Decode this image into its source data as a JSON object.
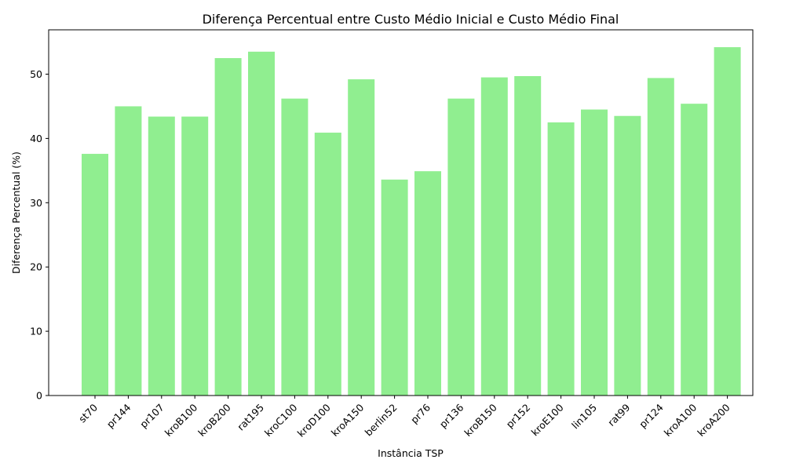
{
  "chart_data": {
    "type": "bar",
    "title": "Diferença Percentual entre Custo Médio Inicial e Custo Médio Final",
    "xlabel": "Instância TSP",
    "ylabel": "Diferença Percentual (%)",
    "categories": [
      "st70",
      "pr144",
      "pr107",
      "kroB100",
      "kroB200",
      "rat195",
      "kroC100",
      "kroD100",
      "kroA150",
      "berlin52",
      "pr76",
      "pr136",
      "kroB150",
      "pr152",
      "kroE100",
      "lin105",
      "rat99",
      "pr124",
      "kroA100",
      "kroA200"
    ],
    "values": [
      37.6,
      45.0,
      43.4,
      43.4,
      52.5,
      53.5,
      46.2,
      40.9,
      49.2,
      33.6,
      34.9,
      46.2,
      49.5,
      49.7,
      42.5,
      44.5,
      43.5,
      49.4,
      45.4,
      54.2
    ],
    "yticks": [
      0,
      10,
      20,
      30,
      40,
      50
    ],
    "ylim": [
      0,
      56.9
    ],
    "bar_color": "#90ee90",
    "grid": false,
    "legend": "none"
  }
}
